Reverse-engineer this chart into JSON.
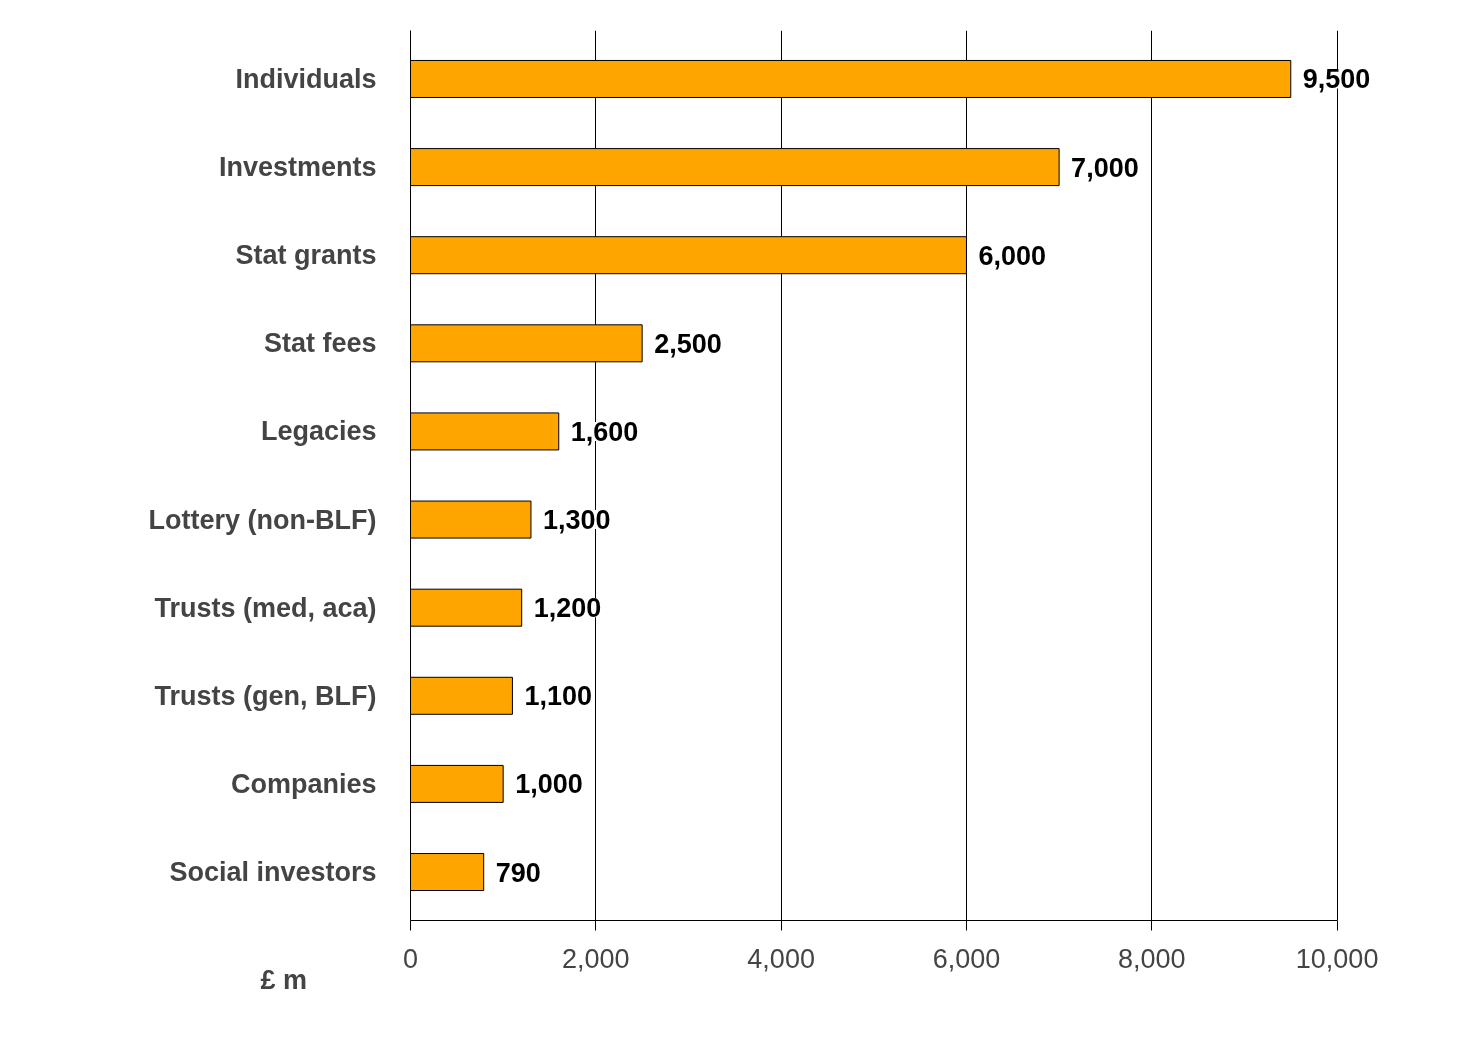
{
  "chart_data": {
    "type": "bar",
    "orientation": "horizontal",
    "xlabel": "£ m",
    "categories": [
      "Individuals",
      "Investments",
      "Stat grants",
      "Stat fees",
      "Legacies",
      "Lottery (non-BLF)",
      "Trusts (med, aca)",
      "Trusts (gen, BLF)",
      "Companies",
      "Social investors"
    ],
    "values": [
      9500,
      7000,
      6000,
      2500,
      1600,
      1300,
      1200,
      1100,
      1000,
      790
    ],
    "color": "#ffa500",
    "xlim": [
      0,
      10000
    ],
    "xticks": [
      0,
      {
        "value": 2000,
        "label": "2,000"
      },
      {
        "value": 4000,
        "label": "4,000"
      },
      {
        "value": 6000,
        "label": "6,000"
      },
      {
        "value": 8000,
        "label": "8,000"
      },
      {
        "value": 10000,
        "label": "10,000"
      }
    ],
    "value_labels": [
      "9,500",
      "7,000",
      "6,000",
      "2,500",
      "1,600",
      "1,300",
      "1,200",
      "1,100",
      "1,000",
      "790"
    ],
    "grid": "x"
  }
}
